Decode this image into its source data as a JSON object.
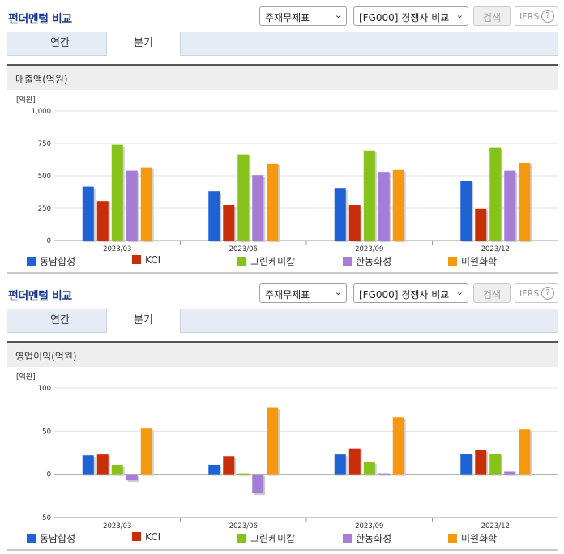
{
  "panels": [
    {
      "title": "펀더멘털 비교",
      "statement_select": "주재무제표",
      "compare_select": "[FG000] 경쟁사 비교",
      "search_label": "검색",
      "ifrs_label": "IFRS",
      "help_glyph": "?",
      "tabs": [
        "연간",
        "분기"
      ],
      "active_tab": "분기",
      "metric_title": "매출액(억원)",
      "unit_label": "[억원]"
    },
    {
      "title": "펀더멘털 비교",
      "statement_select": "주재무제표",
      "compare_select": "[FG000] 경쟁사 비교",
      "search_label": "검색",
      "ifrs_label": "IFRS",
      "help_glyph": "?",
      "tabs": [
        "연간",
        "분기"
      ],
      "active_tab": "분기",
      "metric_title": "영업이익(억원)",
      "unit_label": "[억원]"
    }
  ],
  "colors": {
    "동남합성": "#1e62d4",
    "KCI": "#c92e0b",
    "그린케미칼": "#86c21a",
    "한농화성": "#a67dd6",
    "미원화학": "#f59a0f"
  },
  "chart_data": [
    {
      "type": "bar",
      "title": "매출액(억원)",
      "ylabel": "[억원]",
      "categories": [
        "2023/03",
        "2023/06",
        "2023/09",
        "2023/12"
      ],
      "ylim": [
        0,
        1000
      ],
      "yticks": [
        0,
        250,
        500,
        750,
        1000
      ],
      "ytick_labels": [
        "0",
        "250",
        "500",
        "750",
        "1,000"
      ],
      "grid": true,
      "legend": "bottom",
      "series": [
        {
          "name": "동남합성",
          "values": [
            415,
            380,
            405,
            460
          ]
        },
        {
          "name": "KCI",
          "values": [
            305,
            275,
            275,
            245
          ]
        },
        {
          "name": "그린케미칼",
          "values": [
            740,
            665,
            695,
            715
          ]
        },
        {
          "name": "한농화성",
          "values": [
            540,
            505,
            530,
            540
          ]
        },
        {
          "name": "미원화학",
          "values": [
            565,
            595,
            545,
            600
          ]
        }
      ]
    },
    {
      "type": "bar",
      "title": "영업이익(억원)",
      "ylabel": "[억원]",
      "categories": [
        "2023/03",
        "2023/06",
        "2023/09",
        "2023/12"
      ],
      "ylim": [
        -50,
        100
      ],
      "yticks": [
        -50,
        0,
        50,
        100
      ],
      "ytick_labels": [
        "-50",
        "0",
        "50",
        "100"
      ],
      "grid": true,
      "legend": "bottom",
      "series": [
        {
          "name": "동남합성",
          "values": [
            22,
            11,
            23,
            24
          ]
        },
        {
          "name": "KCI",
          "values": [
            23,
            21,
            30,
            28
          ]
        },
        {
          "name": "그린케미칼",
          "values": [
            11,
            1,
            14,
            24
          ]
        },
        {
          "name": "한농화성",
          "values": [
            -7,
            -22,
            1,
            3
          ]
        },
        {
          "name": "미원화학",
          "values": [
            53,
            77,
            66,
            52
          ]
        }
      ]
    }
  ]
}
